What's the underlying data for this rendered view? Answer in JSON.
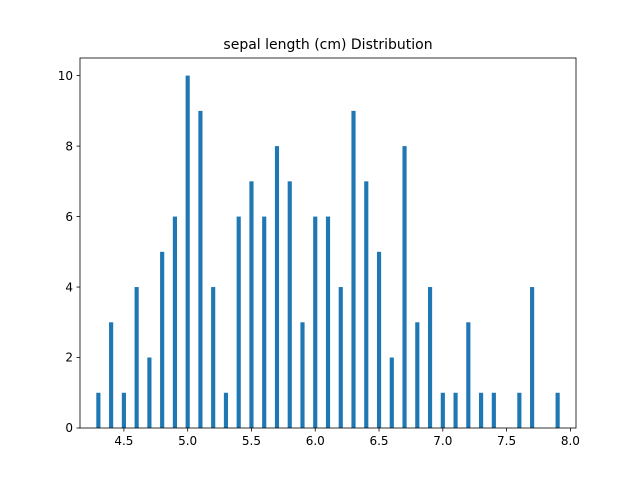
{
  "chart_data": {
    "type": "bar",
    "title": "sepal length (cm) Distribution",
    "xlabel": "",
    "ylabel": "",
    "xlim": [
      4.156,
      8.044
    ],
    "ylim": [
      0,
      10.5
    ],
    "bar_color": "#1f77b4",
    "bar_width": 0.0325,
    "x_ticks": [
      4.5,
      5.0,
      5.5,
      6.0,
      6.5,
      7.0,
      7.5,
      8.0
    ],
    "x_tick_labels": [
      "4.5",
      "5.0",
      "5.5",
      "6.0",
      "6.5",
      "7.0",
      "7.5",
      "8.0"
    ],
    "y_ticks": [
      0,
      2,
      4,
      6,
      8,
      10
    ],
    "y_tick_labels": [
      "0",
      "2",
      "4",
      "6",
      "8",
      "10"
    ],
    "grid": false,
    "x": [
      4.3,
      4.4,
      4.5,
      4.6,
      4.7,
      4.8,
      4.9,
      5.0,
      5.1,
      5.2,
      5.3,
      5.4,
      5.5,
      5.6,
      5.7,
      5.8,
      5.9,
      6.0,
      6.1,
      6.2,
      6.3,
      6.4,
      6.5,
      6.6,
      6.7,
      6.8,
      6.9,
      7.0,
      7.1,
      7.2,
      7.3,
      7.4,
      7.6,
      7.7,
      7.9
    ],
    "values": [
      1,
      3,
      1,
      4,
      2,
      5,
      6,
      10,
      9,
      4,
      1,
      6,
      7,
      6,
      8,
      7,
      3,
      6,
      6,
      4,
      9,
      7,
      5,
      2,
      8,
      3,
      4,
      1,
      1,
      3,
      1,
      1,
      1,
      4,
      1
    ]
  }
}
